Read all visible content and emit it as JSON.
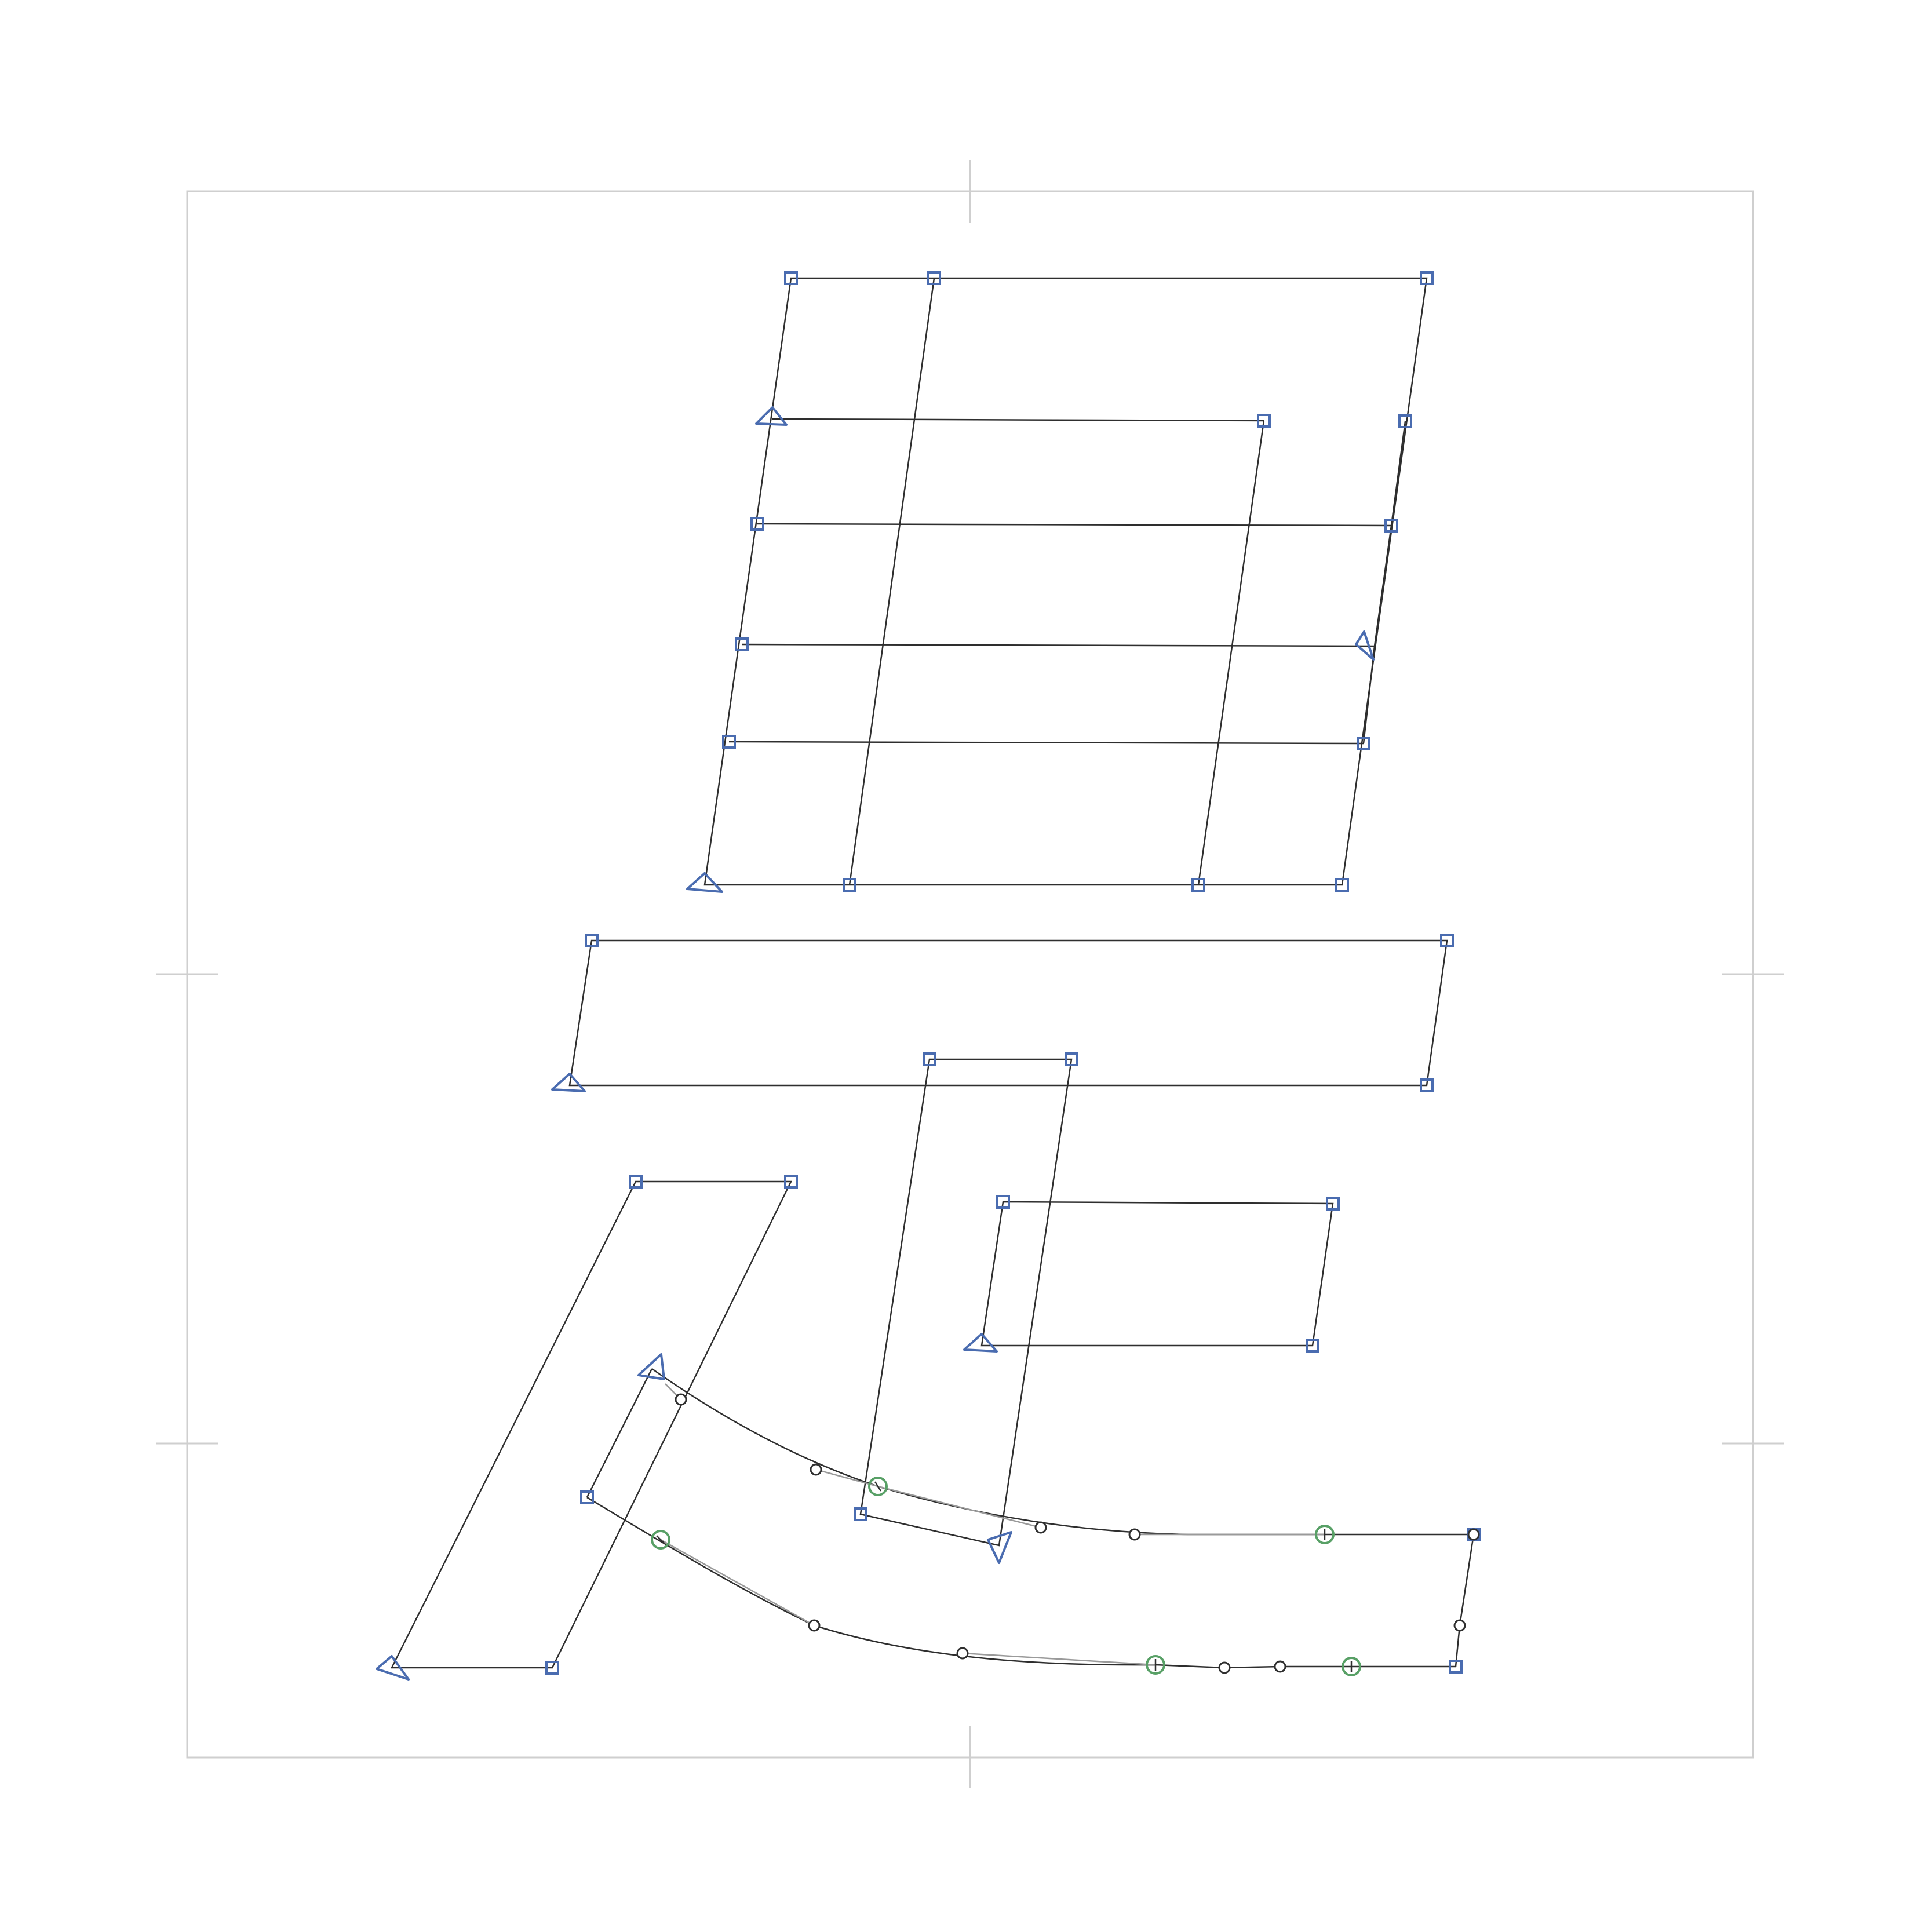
{
  "editor": {
    "view": "glyph-outline",
    "node_types": [
      "corner",
      "start",
      "smooth",
      "off-curve"
    ],
    "colors": {
      "frame": "#cfcfcf",
      "outline": "#2e2e2e",
      "corner_node": "#4a6cb0",
      "smooth_node": "#58a066",
      "handle": "#9a9a9a"
    }
  }
}
